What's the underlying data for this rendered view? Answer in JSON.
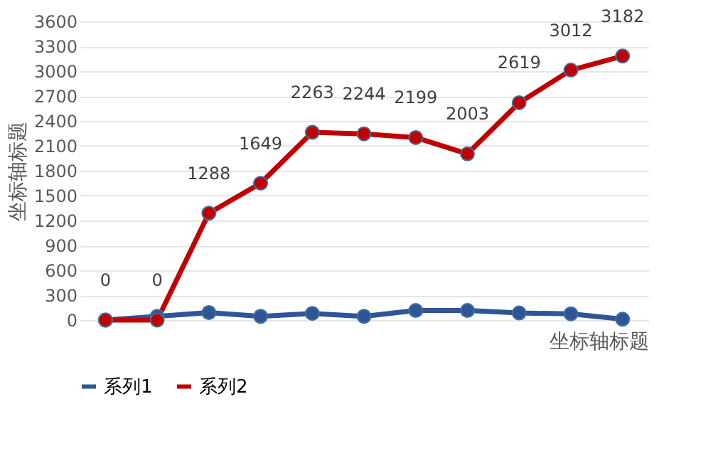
{
  "chart_data": {
    "type": "line",
    "xlabel": "坐标轴标题",
    "ylabel": "坐标轴标题",
    "categories": [
      null,
      null,
      null,
      null,
      null,
      null,
      null,
      null,
      null,
      null,
      null
    ],
    "series": [
      {
        "name": "系列1",
        "color": "#2f5597",
        "values": [
          0,
          45,
          90,
          45,
          80,
          45,
          115,
          115,
          85,
          75,
          10
        ]
      },
      {
        "name": "系列2",
        "color": "#c00000",
        "values": [
          0,
          0,
          1288,
          1649,
          2263,
          2244,
          2199,
          2003,
          2619,
          3012,
          3182
        ],
        "value_labels": [
          "0",
          "0",
          "1288",
          "1649",
          "2263",
          "2244",
          "2199",
          "2003",
          "2619",
          "3012",
          "3182"
        ]
      }
    ],
    "ylim": [
      0,
      3600
    ],
    "yticks": [
      0,
      300,
      600,
      900,
      1200,
      1500,
      1800,
      2100,
      2400,
      2700,
      3000,
      3300,
      3600
    ],
    "grid": "y",
    "legend": "bottom",
    "marker": "circle",
    "line_style": "solid",
    "tick_labels": "y"
  }
}
